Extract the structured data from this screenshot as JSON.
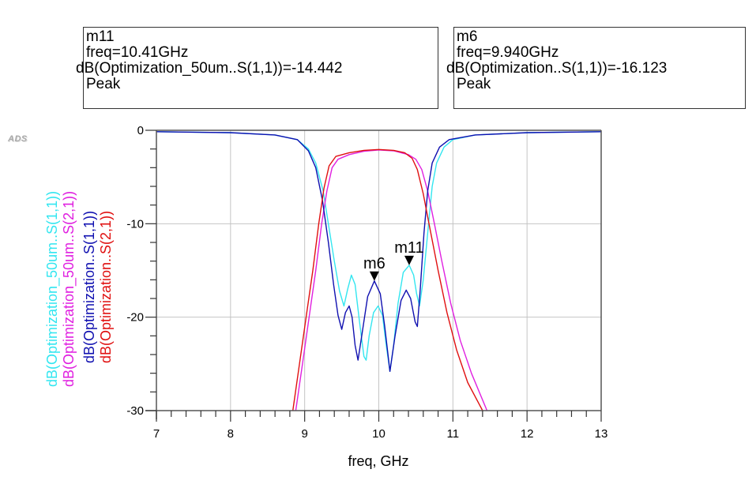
{
  "app": {
    "logo_text": "ADS"
  },
  "markers": [
    {
      "name": "m11",
      "freq_line": "freq=10.41GHz",
      "value_line": "dB(Optimization_50um..S(1,1))=-14.442",
      "mode": "Peak",
      "freq": 10.41,
      "value": -14.442,
      "series": "s11_50um"
    },
    {
      "name": "m6",
      "freq_line": "freq=9.940GHz",
      "value_line": "dB(Optimization..S(1,1))=-16.123",
      "mode": "Peak",
      "freq": 9.94,
      "value": -16.123,
      "series": "s11_opt"
    }
  ],
  "chart_data": {
    "type": "line",
    "title": "",
    "xlabel": "freq, GHz",
    "ylabel": "",
    "xlim": [
      7,
      13
    ],
    "ylim": [
      -30,
      0
    ],
    "x_ticks": [
      "7",
      "8",
      "9",
      "10",
      "11",
      "12",
      "13"
    ],
    "y_ticks": [
      "0",
      "-10",
      "-20",
      "-30"
    ],
    "grid": true,
    "legend_placement": "left-vertical",
    "series": [
      {
        "id": "s11_50um",
        "name": "dB(Optimization_50um..S(1,1))",
        "color": "#33e6f0",
        "points": [
          [
            7,
            -0.15
          ],
          [
            8,
            -0.25
          ],
          [
            8.6,
            -0.5
          ],
          [
            8.9,
            -1.0
          ],
          [
            9.05,
            -2.0
          ],
          [
            9.15,
            -3.5
          ],
          [
            9.25,
            -6.5
          ],
          [
            9.33,
            -10.5
          ],
          [
            9.4,
            -14
          ],
          [
            9.47,
            -17.2
          ],
          [
            9.53,
            -18.8
          ],
          [
            9.58,
            -17
          ],
          [
            9.63,
            -15.5
          ],
          [
            9.68,
            -16.5
          ],
          [
            9.74,
            -20.5
          ],
          [
            9.8,
            -24.2
          ],
          [
            9.83,
            -24.6
          ],
          [
            9.87,
            -22
          ],
          [
            9.93,
            -19.5
          ],
          [
            9.99,
            -18.8
          ],
          [
            10.05,
            -19.8
          ],
          [
            10.1,
            -23
          ],
          [
            10.15,
            -25.8
          ],
          [
            10.2,
            -23
          ],
          [
            10.26,
            -18.5
          ],
          [
            10.33,
            -15.2
          ],
          [
            10.41,
            -14.44
          ],
          [
            10.47,
            -15.5
          ],
          [
            10.51,
            -17.5
          ],
          [
            10.55,
            -18.8
          ],
          [
            10.6,
            -16
          ],
          [
            10.66,
            -11
          ],
          [
            10.72,
            -6
          ],
          [
            10.78,
            -3.5
          ],
          [
            10.88,
            -1.8
          ],
          [
            11.0,
            -1.0
          ],
          [
            11.3,
            -0.5
          ],
          [
            12,
            -0.25
          ],
          [
            13,
            -0.15
          ]
        ]
      },
      {
        "id": "s21_50um",
        "name": "dB(Optimization_50um..S(2,1))",
        "color": "#e020e0",
        "points": [
          [
            8.88,
            -30
          ],
          [
            8.97,
            -25
          ],
          [
            9.06,
            -20
          ],
          [
            9.15,
            -15
          ],
          [
            9.23,
            -10
          ],
          [
            9.3,
            -6.5
          ],
          [
            9.37,
            -4
          ],
          [
            9.45,
            -3.1
          ],
          [
            9.6,
            -2.6
          ],
          [
            9.8,
            -2.25
          ],
          [
            10.0,
            -2.1
          ],
          [
            10.2,
            -2.2
          ],
          [
            10.4,
            -2.6
          ],
          [
            10.5,
            -3.1
          ],
          [
            10.58,
            -4.2
          ],
          [
            10.66,
            -6.5
          ],
          [
            10.75,
            -10
          ],
          [
            10.85,
            -14
          ],
          [
            10.97,
            -18.5
          ],
          [
            11.1,
            -22.5
          ],
          [
            11.25,
            -26
          ],
          [
            11.46,
            -30
          ]
        ]
      },
      {
        "id": "s11_opt",
        "name": "dB(Optimization..S(1,1))",
        "color": "#1010b0",
        "points": [
          [
            7,
            -0.15
          ],
          [
            8,
            -0.25
          ],
          [
            8.6,
            -0.5
          ],
          [
            8.9,
            -1.0
          ],
          [
            9.05,
            -2.2
          ],
          [
            9.15,
            -4
          ],
          [
            9.24,
            -7.5
          ],
          [
            9.32,
            -12
          ],
          [
            9.39,
            -16.5
          ],
          [
            9.45,
            -19.8
          ],
          [
            9.5,
            -21.3
          ],
          [
            9.55,
            -19.5
          ],
          [
            9.6,
            -18.8
          ],
          [
            9.64,
            -20
          ],
          [
            9.68,
            -23
          ],
          [
            9.72,
            -24.6
          ],
          [
            9.77,
            -22
          ],
          [
            9.85,
            -17.8
          ],
          [
            9.94,
            -16.12
          ],
          [
            10.02,
            -17.5
          ],
          [
            10.08,
            -21
          ],
          [
            10.15,
            -25.8
          ],
          [
            10.22,
            -22
          ],
          [
            10.3,
            -18.2
          ],
          [
            10.37,
            -17.1
          ],
          [
            10.43,
            -18
          ],
          [
            10.49,
            -20.5
          ],
          [
            10.52,
            -21
          ],
          [
            10.56,
            -17
          ],
          [
            10.61,
            -11
          ],
          [
            10.66,
            -6.5
          ],
          [
            10.72,
            -3.5
          ],
          [
            10.82,
            -1.8
          ],
          [
            10.95,
            -1.0
          ],
          [
            11.3,
            -0.5
          ],
          [
            12,
            -0.25
          ],
          [
            13,
            -0.15
          ]
        ]
      },
      {
        "id": "s21_opt",
        "name": "dB(Optimization..S(2,1))",
        "color": "#e01010",
        "points": [
          [
            8.84,
            -30
          ],
          [
            8.93,
            -25
          ],
          [
            9.02,
            -20
          ],
          [
            9.11,
            -15
          ],
          [
            9.19,
            -10
          ],
          [
            9.26,
            -6.2
          ],
          [
            9.33,
            -3.8
          ],
          [
            9.42,
            -2.8
          ],
          [
            9.6,
            -2.4
          ],
          [
            9.8,
            -2.15
          ],
          [
            10.0,
            -2.05
          ],
          [
            10.2,
            -2.15
          ],
          [
            10.35,
            -2.4
          ],
          [
            10.45,
            -3
          ],
          [
            10.52,
            -4.2
          ],
          [
            10.6,
            -6.8
          ],
          [
            10.69,
            -10.5
          ],
          [
            10.8,
            -15
          ],
          [
            10.92,
            -19.5
          ],
          [
            11.05,
            -23.5
          ],
          [
            11.2,
            -27
          ],
          [
            11.4,
            -30
          ]
        ]
      }
    ]
  }
}
